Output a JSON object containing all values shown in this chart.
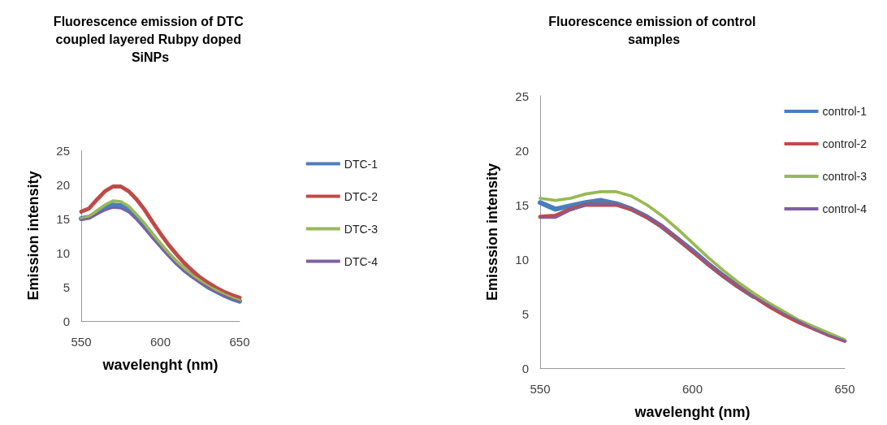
{
  "chart_data": [
    {
      "type": "line",
      "title": "Fluorescence emission of DTC coupled layered Rubpy doped SiNPs",
      "xlabel": "wavelenght (nm)",
      "ylabel": "Emission intensity",
      "x": [
        550,
        555,
        560,
        565,
        570,
        575,
        580,
        585,
        590,
        595,
        600,
        605,
        610,
        615,
        620,
        625,
        630,
        635,
        640,
        645,
        650
      ],
      "xlim": [
        550,
        650
      ],
      "xticks": [
        550,
        600,
        650
      ],
      "ylim": [
        0,
        25
      ],
      "yticks": [
        0,
        5,
        10,
        15,
        20,
        25
      ],
      "grid": false,
      "legend": "right",
      "marker": "none",
      "series": [
        {
          "name": "DTC-1",
          "color": "#4a7ebb",
          "values": [
            15,
            15.2,
            15.9,
            16.6,
            17.0,
            16.9,
            16.3,
            15.2,
            13.9,
            12.5,
            11.1,
            9.8,
            8.6,
            7.5,
            6.6,
            5.8,
            5.0,
            4.4,
            3.8,
            3.3,
            2.9
          ]
        },
        {
          "name": "DTC-2",
          "color": "#be4b48",
          "values": [
            16,
            16.5,
            17.8,
            19,
            19.7,
            19.7,
            19,
            17.8,
            16.3,
            14.5,
            12.8,
            11.2,
            9.8,
            8.5,
            7.4,
            6.4,
            5.6,
            4.9,
            4.3,
            3.8,
            3.4
          ]
        },
        {
          "name": "DTC-3",
          "color": "#98b954",
          "values": [
            15,
            15.3,
            16.2,
            17,
            17.6,
            17.5,
            16.8,
            15.6,
            14.3,
            12.8,
            11.4,
            10,
            8.8,
            7.7,
            6.7,
            5.9,
            5.1,
            4.5,
            3.9,
            3.4,
            3.0
          ]
        },
        {
          "name": "DTC-4",
          "color": "#7d60a0",
          "values": [
            14.8,
            15,
            15.6,
            16.2,
            16.6,
            16.5,
            15.9,
            14.8,
            13.5,
            12.1,
            10.8,
            9.5,
            8.3,
            7.3,
            6.4,
            5.6,
            4.9,
            4.2,
            3.7,
            3.2,
            2.8
          ]
        }
      ]
    },
    {
      "type": "line",
      "title": "Fluorescence emission of control samples",
      "xlabel": "wavelenght (nm)",
      "ylabel": "Emisssion intensity",
      "x": [
        550,
        555,
        560,
        565,
        570,
        575,
        580,
        585,
        590,
        595,
        600,
        605,
        610,
        615,
        620,
        625,
        630,
        635,
        640,
        645,
        650
      ],
      "xlim": [
        550,
        650
      ],
      "xticks": [
        550,
        600,
        650
      ],
      "ylim": [
        0,
        25
      ],
      "yticks": [
        0,
        5,
        10,
        15,
        20,
        25
      ],
      "grid": false,
      "legend": "top right",
      "marker": "none",
      "series": [
        {
          "name": "control-1",
          "color": "#4a7ebb",
          "values": [
            15.2,
            14.6,
            14.9,
            15.2,
            15.4,
            15.1,
            14.6,
            13.9,
            13,
            11.9,
            10.8,
            9.6,
            8.5,
            7.5,
            6.6,
            null,
            null,
            null,
            null,
            null,
            null
          ]
        },
        {
          "name": "control-2",
          "color": "#be4b48",
          "values": [
            13.9,
            14,
            14.6,
            15,
            15,
            15,
            14.6,
            13.9,
            13,
            11.9,
            10.7,
            9.6,
            8.5,
            7.5,
            6.6,
            5.7,
            4.9,
            4.2,
            3.6,
            3.0,
            2.5
          ]
        },
        {
          "name": "control-3",
          "color": "#98b954",
          "values": [
            15.6,
            15.4,
            15.6,
            16,
            16.2,
            16.2,
            15.8,
            15,
            14,
            12.8,
            11.5,
            10.2,
            9,
            7.9,
            6.9,
            6,
            5.2,
            4.4,
            3.8,
            3.2,
            2.6
          ]
        },
        {
          "name": "control-4",
          "color": "#7d60a0",
          "values": [
            13.8,
            13.8,
            14.5,
            15,
            15.1,
            15.1,
            14.7,
            14,
            13.1,
            12,
            10.8,
            9.7,
            8.6,
            7.6,
            6.6,
            5.8,
            5.0,
            4.3,
            3.6,
            3.0,
            2.5
          ]
        }
      ]
    }
  ]
}
